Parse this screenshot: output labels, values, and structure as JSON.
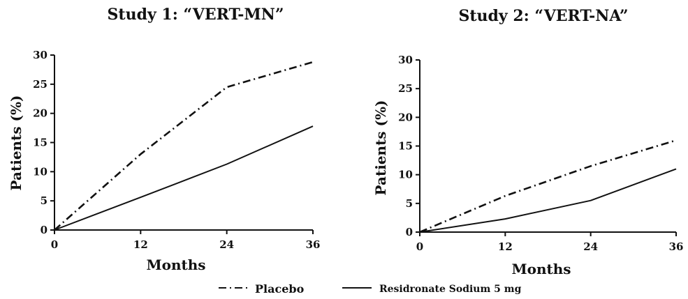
{
  "chart_data": [
    {
      "type": "line",
      "title": "Study 1: “VERT-MN”",
      "xlabel": "Months",
      "ylabel": "Patients (%)",
      "x": [
        0,
        12,
        24,
        36
      ],
      "xlim": [
        0,
        36
      ],
      "ylim": [
        0,
        30
      ],
      "xticks": [
        "0",
        "12",
        "24",
        "36"
      ],
      "yticks": [
        "0",
        "5",
        "10",
        "15",
        "20",
        "25",
        "30"
      ],
      "series": [
        {
          "name": "Placebo",
          "style": "dashdot",
          "values": [
            0,
            13,
            24.5,
            28.8
          ]
        },
        {
          "name": "Residronate Sodium 5 mg",
          "style": "solid",
          "values": [
            0,
            5.6,
            11.3,
            17.8
          ]
        }
      ]
    },
    {
      "type": "line",
      "title": "Study 2: “VERT-NA”",
      "xlabel": "Months",
      "ylabel": "Patients (%)",
      "x": [
        0,
        12,
        24,
        36
      ],
      "xlim": [
        0,
        36
      ],
      "ylim": [
        0,
        30
      ],
      "xticks": [
        "0",
        "12",
        "24",
        "36"
      ],
      "yticks": [
        "0",
        "5",
        "10",
        "15",
        "20",
        "25",
        "30"
      ],
      "series": [
        {
          "name": "Placebo",
          "style": "dashdot",
          "values": [
            0,
            6.3,
            11.5,
            16
          ]
        },
        {
          "name": "Residronate Sodium 5 mg",
          "style": "solid",
          "values": [
            0,
            2.3,
            5.5,
            11
          ]
        }
      ]
    }
  ],
  "legend": {
    "placement": "bottom-center",
    "items": [
      {
        "label": "Placebo",
        "style": "dashdot"
      },
      {
        "label": "Residronate Sodium 5 mg",
        "style": "solid"
      }
    ]
  },
  "colors": {
    "ink": "#111111"
  }
}
